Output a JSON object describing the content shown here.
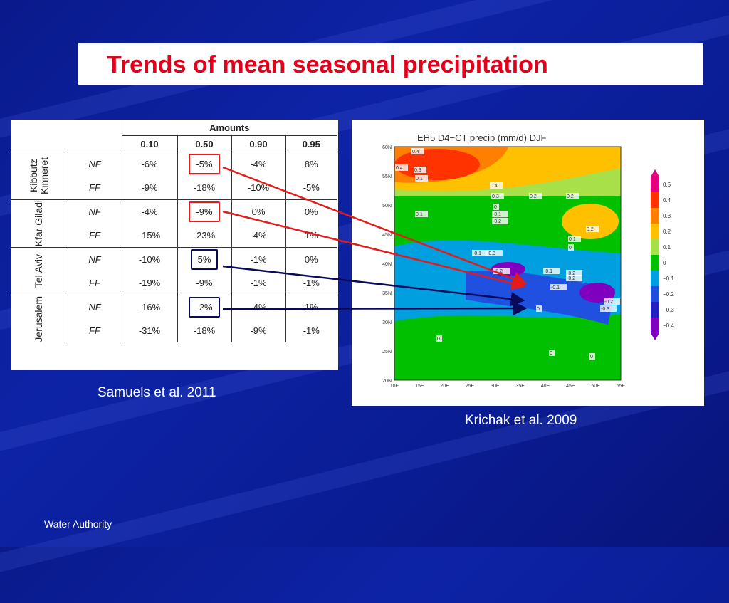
{
  "title": "Trends of mean seasonal precipitation",
  "table": {
    "super_header": "Amounts",
    "columns": [
      "0.10",
      "0.50",
      "0.90",
      "0.95"
    ],
    "groups": [
      {
        "name": "Kibbutz Kinneret",
        "rows": [
          {
            "label": "NF",
            "values": [
              "-6%",
              "-5%",
              "-4%",
              "8%"
            ]
          },
          {
            "label": "FF",
            "values": [
              "-9%",
              "-18%",
              "-10%",
              "-5%"
            ]
          }
        ]
      },
      {
        "name": "Kfar Giladi",
        "rows": [
          {
            "label": "NF",
            "values": [
              "-4%",
              "-9%",
              "0%",
              "0%"
            ]
          },
          {
            "label": "FF",
            "values": [
              "-15%",
              "-23%",
              "-4%",
              "1%"
            ]
          }
        ]
      },
      {
        "name": "Tel Aviv",
        "rows": [
          {
            "label": "NF",
            "values": [
              "-10%",
              "5%",
              "-1%",
              "0%"
            ]
          },
          {
            "label": "FF",
            "values": [
              "-19%",
              "-9%",
              "-1%",
              "-1%"
            ]
          }
        ]
      },
      {
        "name": "Jerusalem",
        "rows": [
          {
            "label": "NF",
            "values": [
              "-16%",
              "-2%",
              "-4%",
              "1%"
            ]
          },
          {
            "label": "FF",
            "values": [
              "-31%",
              "-18%",
              "-9%",
              "-1%"
            ]
          }
        ]
      }
    ],
    "highlighted_cells": [
      {
        "group": "Kibbutz Kinneret",
        "row": "NF",
        "column": "0.50",
        "color": "#e31b1b"
      },
      {
        "group": "Kfar Giladi",
        "row": "NF",
        "column": "0.50",
        "color": "#e31b1b"
      },
      {
        "group": "Tel Aviv",
        "row": "NF",
        "column": "0.50",
        "color": "#0a0a5a"
      },
      {
        "group": "Jerusalem",
        "row": "NF",
        "column": "0.50",
        "color": "#0a0a5a"
      }
    ]
  },
  "caption_left": "Samuels et al. 2011",
  "caption_right": "Krichak et al. 2009",
  "footer": "Water Authority",
  "map": {
    "title": "EH5 D4−CT precip (mm/d) DJF",
    "lat_labels": [
      "60N",
      "55N",
      "50N",
      "45N",
      "40N",
      "35N",
      "30N",
      "25N",
      "20N"
    ],
    "lon_labels": [
      "10E",
      "15E",
      "20E",
      "25E",
      "30E",
      "35E",
      "40E",
      "45E",
      "50E",
      "55E"
    ],
    "legend": [
      "0.5",
      "0.4",
      "0.3",
      "0.2",
      "0.1",
      "0",
      "−0.1",
      "−0.2",
      "−0.3",
      "−0.4"
    ],
    "legend_colors": [
      "#e6007e",
      "#ff3300",
      "#ff8000",
      "#ffc000",
      "#a8e04a",
      "#00c000",
      "#00a0e0",
      "#2050e0",
      "#2020c0",
      "#8000c0"
    ],
    "contour_labels": [
      "0.4",
      "0.4",
      "0.3",
      "0.1",
      "0.4",
      "0.3",
      "0.2",
      "0.2",
      "0.1",
      "0",
      "-0.1",
      "-0.2",
      "0.2",
      "0.1",
      "0",
      "-0.1",
      "-0.3",
      "-0.2",
      "-0.1",
      "-0.2",
      "-0.2",
      "-0.1",
      "-0.2",
      "-0.3",
      "0",
      "0",
      "0",
      "0"
    ]
  }
}
